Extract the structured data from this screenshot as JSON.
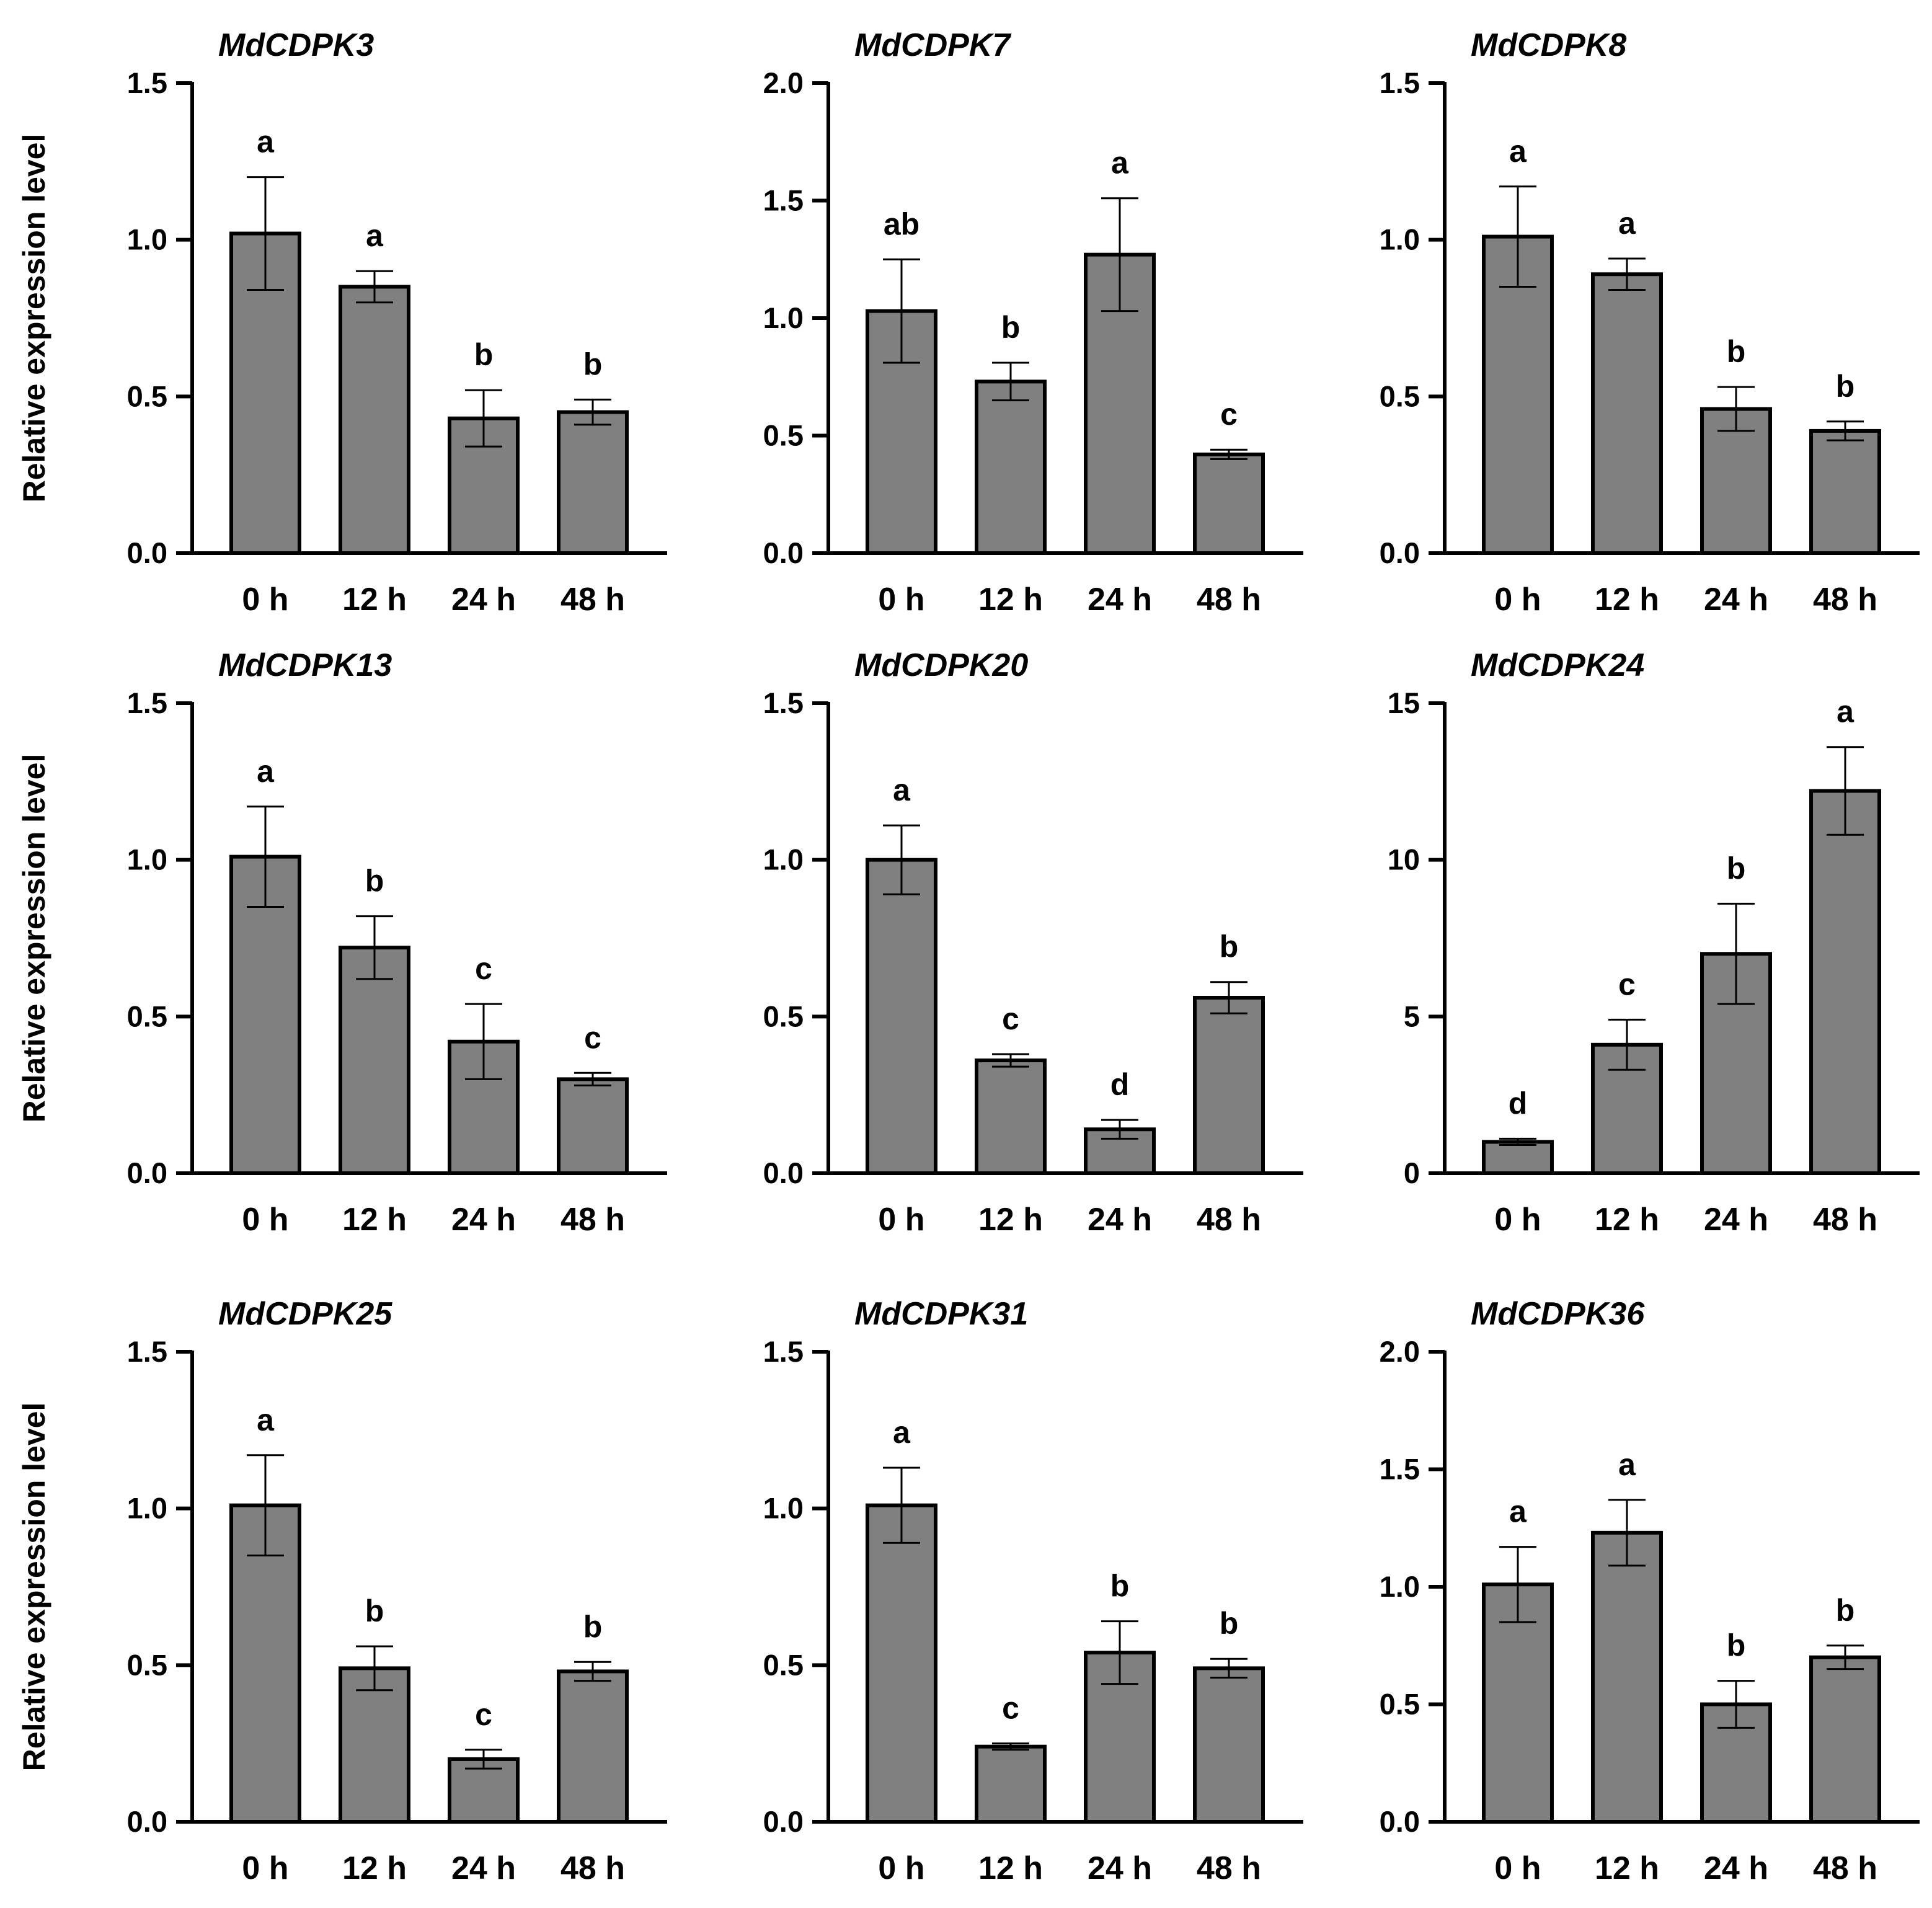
{
  "figure": {
    "ylabel": "Relative expression level",
    "categories": [
      "0 h",
      "12 h",
      "24 h",
      "48 h"
    ],
    "bar_color": "#808080",
    "stroke_color": "#000000"
  },
  "chart_data": [
    {
      "type": "bar",
      "title": "MdCDPK3",
      "ylabel": "Relative expression level",
      "categories": [
        "0 h",
        "12 h",
        "24 h",
        "48 h"
      ],
      "ylim": [
        0,
        1.5
      ],
      "yticks": [
        "0.0",
        "0.5",
        "1.0",
        "1.5"
      ],
      "values": [
        1.02,
        0.85,
        0.43,
        0.45
      ],
      "errors": [
        0.18,
        0.05,
        0.09,
        0.04
      ],
      "labels": [
        "a",
        "a",
        "b",
        "b"
      ]
    },
    {
      "type": "bar",
      "title": "MdCDPK7",
      "ylabel": "",
      "categories": [
        "0 h",
        "12 h",
        "24 h",
        "48 h"
      ],
      "ylim": [
        0,
        2.0
      ],
      "yticks": [
        "0.0",
        "0.5",
        "1.0",
        "1.5",
        "2.0"
      ],
      "values": [
        1.03,
        0.73,
        1.27,
        0.42
      ],
      "errors": [
        0.22,
        0.08,
        0.24,
        0.02
      ],
      "labels": [
        "ab",
        "b",
        "a",
        "c"
      ]
    },
    {
      "type": "bar",
      "title": "MdCDPK8",
      "ylabel": "",
      "categories": [
        "0 h",
        "12 h",
        "24 h",
        "48 h"
      ],
      "ylim": [
        0,
        1.5
      ],
      "yticks": [
        "0.0",
        "0.5",
        "1.0",
        "1.5"
      ],
      "values": [
        1.01,
        0.89,
        0.46,
        0.39
      ],
      "errors": [
        0.16,
        0.05,
        0.07,
        0.03
      ],
      "labels": [
        "a",
        "a",
        "b",
        "b"
      ]
    },
    {
      "type": "bar",
      "title": "MdCDPK13",
      "ylabel": "Relative expression level",
      "categories": [
        "0 h",
        "12 h",
        "24 h",
        "48 h"
      ],
      "ylim": [
        0,
        1.5
      ],
      "yticks": [
        "0.0",
        "0.5",
        "1.0",
        "1.5"
      ],
      "values": [
        1.01,
        0.72,
        0.42,
        0.3
      ],
      "errors": [
        0.16,
        0.1,
        0.12,
        0.02
      ],
      "labels": [
        "a",
        "b",
        "c",
        "c"
      ]
    },
    {
      "type": "bar",
      "title": "MdCDPK20",
      "ylabel": "",
      "categories": [
        "0 h",
        "12 h",
        "24 h",
        "48 h"
      ],
      "ylim": [
        0,
        1.5
      ],
      "yticks": [
        "0.0",
        "0.5",
        "1.0",
        "1.5"
      ],
      "values": [
        1.0,
        0.36,
        0.14,
        0.56
      ],
      "errors": [
        0.11,
        0.02,
        0.03,
        0.05
      ],
      "labels": [
        "a",
        "c",
        "d",
        "b"
      ]
    },
    {
      "type": "bar",
      "title": "MdCDPK24",
      "ylabel": "",
      "categories": [
        "0 h",
        "12 h",
        "24 h",
        "48 h"
      ],
      "ylim": [
        0,
        15
      ],
      "yticks": [
        "0",
        "5",
        "10",
        "15"
      ],
      "values": [
        1.0,
        4.1,
        7.0,
        12.2
      ],
      "errors": [
        0.1,
        0.8,
        1.6,
        1.4
      ],
      "labels": [
        "d",
        "c",
        "b",
        "a"
      ]
    },
    {
      "type": "bar",
      "title": "MdCDPK25",
      "ylabel": "Relative expression level",
      "categories": [
        "0 h",
        "12 h",
        "24 h",
        "48 h"
      ],
      "ylim": [
        0,
        1.5
      ],
      "yticks": [
        "0.0",
        "0.5",
        "1.0",
        "1.5"
      ],
      "values": [
        1.01,
        0.49,
        0.2,
        0.48
      ],
      "errors": [
        0.16,
        0.07,
        0.03,
        0.03
      ],
      "labels": [
        "a",
        "b",
        "c",
        "b"
      ]
    },
    {
      "type": "bar",
      "title": "MdCDPK31",
      "ylabel": "",
      "categories": [
        "0 h",
        "12 h",
        "24 h",
        "48 h"
      ],
      "ylim": [
        0,
        1.5
      ],
      "yticks": [
        "0.0",
        "0.5",
        "1.0",
        "1.5"
      ],
      "values": [
        1.01,
        0.24,
        0.54,
        0.49
      ],
      "errors": [
        0.12,
        0.01,
        0.1,
        0.03
      ],
      "labels": [
        "a",
        "c",
        "b",
        "b"
      ]
    },
    {
      "type": "bar",
      "title": "MdCDPK36",
      "ylabel": "",
      "categories": [
        "0 h",
        "12 h",
        "24 h",
        "48 h"
      ],
      "ylim": [
        0,
        2.0
      ],
      "yticks": [
        "0.0",
        "0.5",
        "1.0",
        "1.5",
        "2.0"
      ],
      "values": [
        1.01,
        1.23,
        0.5,
        0.7
      ],
      "errors": [
        0.16,
        0.14,
        0.1,
        0.05
      ],
      "labels": [
        "a",
        "a",
        "b",
        "b"
      ]
    }
  ]
}
